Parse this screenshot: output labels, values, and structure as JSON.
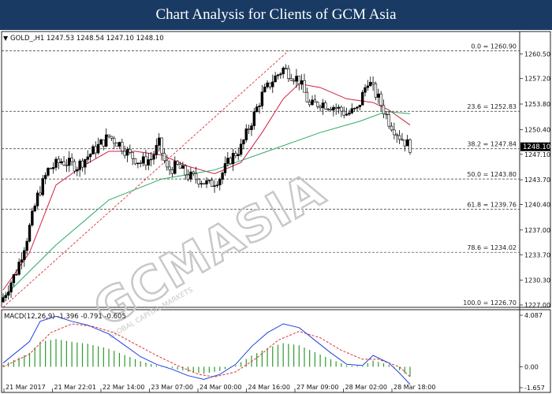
{
  "banner": {
    "title": "Chart Analysis for Clients of GCM Asia"
  },
  "watermark": {
    "brand": "GCMASIA",
    "tagline": "GLOBAL CAPITAL MARKETS"
  },
  "chart_data": [
    {
      "type": "candlestick",
      "symbol_info": "GOLD_,H1  1247.53 1248.54 1247.10 1248.10",
      "ylim": [
        1227.0,
        1262.0
      ],
      "y_ticks": [
        "1260.50",
        "1257.20",
        "1253.80",
        "1250.40",
        "1247.10",
        "1243.70",
        "1240.40",
        "1237.00",
        "1233.70",
        "1230.30",
        "1227.00"
      ],
      "x_ticks": [
        "21 Mar 2017",
        "21 Mar 22:01",
        "22 Mar 14:00",
        "23 Mar 07:00",
        "24 Mar 00:00",
        "24 Mar 16:00",
        "27 Mar 09:00",
        "28 Mar 02:00",
        "28 Mar 18:00"
      ],
      "current_price": "1248.10",
      "fib_levels": [
        {
          "label": "0.0 = 1260.90",
          "value": 1260.9
        },
        {
          "label": "23.6 = 1252.83",
          "value": 1252.83
        },
        {
          "label": "38.2 = 1247.84",
          "value": 1247.84
        },
        {
          "label": "50.0 = 1243.80",
          "value": 1243.8
        },
        {
          "label": "61.8 = 1239.76",
          "value": 1239.76
        },
        {
          "label": "78.6 = 1234.02",
          "value": 1234.02
        },
        {
          "label": "100.0 = 1226.70",
          "value": 1226.7
        }
      ],
      "close_path": [
        [
          0,
          1228.0
        ],
        [
          5,
          1231.5
        ],
        [
          9,
          1236.0
        ],
        [
          13,
          1241.5
        ],
        [
          17,
          1245.0
        ],
        [
          22,
          1246.2
        ],
        [
          28,
          1245.5
        ],
        [
          34,
          1247.5
        ],
        [
          40,
          1249.5
        ],
        [
          44,
          1248.5
        ],
        [
          48,
          1247.0
        ],
        [
          52,
          1246.0
        ],
        [
          56,
          1246.5
        ],
        [
          59,
          1248.5
        ],
        [
          62,
          1245.0
        ],
        [
          66,
          1245.5
        ],
        [
          70,
          1244.2
        ],
        [
          74,
          1243.8
        ],
        [
          78,
          1243.0
        ],
        [
          82,
          1244.0
        ],
        [
          86,
          1246.5
        ],
        [
          90,
          1248.0
        ],
        [
          94,
          1251.5
        ],
        [
          98,
          1255.0
        ],
        [
          102,
          1257.0
        ],
        [
          106,
          1258.5
        ],
        [
          108,
          1258.0
        ],
        [
          112,
          1257.0
        ],
        [
          116,
          1253.5
        ],
        [
          120,
          1254.0
        ],
        [
          125,
          1253.5
        ],
        [
          130,
          1252.5
        ],
        [
          134,
          1253.0
        ],
        [
          138,
          1257.0
        ],
        [
          142,
          1254.5
        ],
        [
          146,
          1251.5
        ],
        [
          150,
          1249.5
        ],
        [
          154,
          1248.1
        ]
      ],
      "series": [
        {
          "name": "MA fast",
          "color": "#d02040",
          "values": [
            [
              0,
              1229.0
            ],
            [
              10,
              1234.0
            ],
            [
              20,
              1243.0
            ],
            [
              30,
              1245.5
            ],
            [
              40,
              1247.5
            ],
            [
              50,
              1247.5
            ],
            [
              60,
              1247.0
            ],
            [
              70,
              1245.5
            ],
            [
              80,
              1244.5
            ],
            [
              90,
              1246.0
            ],
            [
              98,
              1250.0
            ],
            [
              106,
              1254.5
            ],
            [
              112,
              1256.5
            ],
            [
              120,
              1256.0
            ],
            [
              130,
              1254.5
            ],
            [
              140,
              1254.0
            ],
            [
              146,
              1253.0
            ],
            [
              154,
              1251.0
            ]
          ]
        },
        {
          "name": "MA slow",
          "color": "#2ea86a",
          "values": [
            [
              0,
              1228.0
            ],
            [
              20,
              1235.0
            ],
            [
              40,
              1241.0
            ],
            [
              60,
              1243.8
            ],
            [
              80,
              1245.0
            ],
            [
              100,
              1247.5
            ],
            [
              120,
              1250.0
            ],
            [
              135,
              1251.5
            ],
            [
              145,
              1252.8
            ],
            [
              154,
              1252.5
            ]
          ]
        }
      ],
      "trendline": {
        "color": "#e03030",
        "from": [
          0,
          1226.7
        ],
        "to": [
          108,
          1260.9
        ]
      }
    },
    {
      "type": "macd",
      "label": "MACD(12,26,9) -1.396 -0.791 -0.605",
      "ylim": [
        -1.657,
        4.087
      ],
      "y_ticks": [
        "4.087",
        "0.00",
        "-1.657"
      ],
      "main": [
        [
          0,
          0.3
        ],
        [
          10,
          2.0
        ],
        [
          14,
          3.6
        ],
        [
          20,
          4.0
        ],
        [
          26,
          3.6
        ],
        [
          32,
          3.3
        ],
        [
          40,
          2.6
        ],
        [
          46,
          1.7
        ],
        [
          52,
          0.8
        ],
        [
          58,
          0.2
        ],
        [
          64,
          -0.2
        ],
        [
          70,
          -0.7
        ],
        [
          76,
          -1.0
        ],
        [
          82,
          -0.6
        ],
        [
          88,
          0.2
        ],
        [
          94,
          1.6
        ],
        [
          100,
          2.7
        ],
        [
          106,
          3.4
        ],
        [
          112,
          3.1
        ],
        [
          118,
          2.1
        ],
        [
          124,
          1.1
        ],
        [
          130,
          0.2
        ],
        [
          136,
          0.1
        ],
        [
          140,
          0.9
        ],
        [
          146,
          0.3
        ],
        [
          150,
          -0.5
        ],
        [
          154,
          -1.4
        ]
      ],
      "signal": [
        [
          0,
          0.0
        ],
        [
          10,
          1.0
        ],
        [
          18,
          2.7
        ],
        [
          26,
          3.4
        ],
        [
          34,
          3.2
        ],
        [
          42,
          2.7
        ],
        [
          50,
          1.8
        ],
        [
          58,
          0.9
        ],
        [
          66,
          0.1
        ],
        [
          74,
          -0.6
        ],
        [
          80,
          -0.8
        ],
        [
          88,
          -0.4
        ],
        [
          96,
          0.7
        ],
        [
          104,
          2.1
        ],
        [
          112,
          2.8
        ],
        [
          120,
          2.3
        ],
        [
          128,
          1.3
        ],
        [
          136,
          0.6
        ],
        [
          142,
          0.6
        ],
        [
          150,
          0.0
        ],
        [
          154,
          -0.8
        ]
      ]
    }
  ]
}
